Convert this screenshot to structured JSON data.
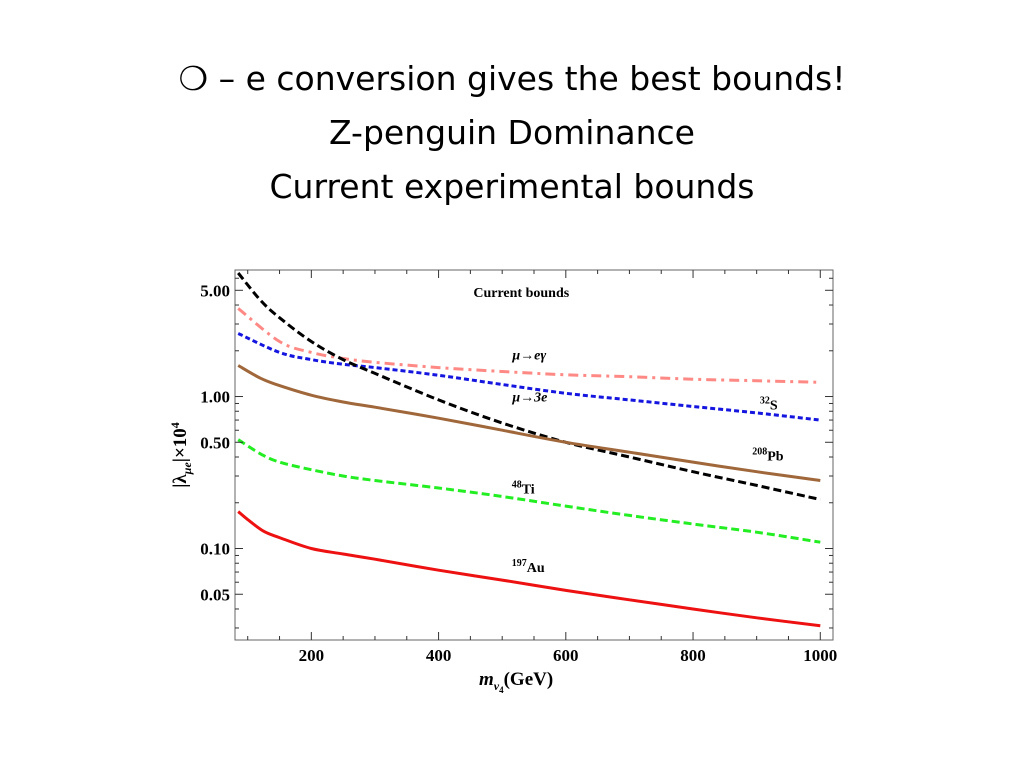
{
  "slide": {
    "bullet": "❍",
    "title_line1": "– e conversion gives the best bounds!",
    "title_line2": "Z-penguin Dominance",
    "title_line3": "Current experimental bounds"
  },
  "chart_data": {
    "type": "line",
    "title": "Current bounds",
    "xlabel_main": "m",
    "xlabel_sub": "ν",
    "xlabel_subsub": "4",
    "xlabel_unit": "(GeV)",
    "ylabel": "|λ",
    "ylabel_sub": "μe",
    "ylabel_mid": "|×10",
    "ylabel_exp": "4",
    "xlim": [
      80,
      1020
    ],
    "ylim": [
      0.025,
      6.8
    ],
    "yscale": "log",
    "x_ticks": [
      200,
      400,
      600,
      800,
      1000
    ],
    "x_tick_labels": [
      "200",
      "400",
      "600",
      "800",
      "1000"
    ],
    "y_ticks": [
      5.0,
      1.0,
      0.5,
      0.1,
      0.05
    ],
    "y_tick_labels": [
      "5.00",
      "1.00",
      "0.50",
      "0.10",
      "0.05"
    ],
    "grid": false,
    "legend": "none",
    "series": [
      {
        "color": "#ff8a85",
        "dash": "10,5,3,5",
        "x": [
          85,
          150,
          200,
          250,
          300,
          400,
          500,
          600,
          700,
          800,
          900,
          1000
        ],
        "y": [
          3.8,
          2.3,
          1.95,
          1.78,
          1.68,
          1.55,
          1.46,
          1.39,
          1.35,
          1.3,
          1.27,
          1.24
        ],
        "label_pre": "μ→e",
        "label_sup": "",
        "label_main": "γ",
        "label_x": 516,
        "label_y": 1.75
      },
      {
        "color": "#1515e0",
        "dash": "5,3",
        "x": [
          85,
          150,
          200,
          250,
          300,
          400,
          500,
          600,
          700,
          800,
          900,
          1000
        ],
        "y": [
          2.6,
          1.95,
          1.75,
          1.63,
          1.55,
          1.38,
          1.2,
          1.05,
          0.95,
          0.86,
          0.78,
          0.7
        ],
        "label_pre": "",
        "label_sup": "32",
        "label_main": "S",
        "label_x": 905,
        "label_y": 0.82
      },
      {
        "color": "#000000",
        "dash": "8,4",
        "x": [
          85,
          120,
          150,
          200,
          250,
          300,
          400,
          500,
          600,
          700,
          800,
          900,
          1000
        ],
        "y": [
          6.5,
          4.3,
          3.3,
          2.3,
          1.75,
          1.42,
          0.95,
          0.67,
          0.5,
          0.4,
          0.32,
          0.26,
          0.21
        ],
        "label_pre": "μ→3e",
        "label_sup": "",
        "label_main": "",
        "label_x": 516,
        "label_y": 0.93
      },
      {
        "color": "#a0673a",
        "dash": "",
        "x": [
          85,
          120,
          150,
          200,
          250,
          300,
          400,
          500,
          600,
          700,
          800,
          900,
          1000
        ],
        "y": [
          1.6,
          1.32,
          1.18,
          1.02,
          0.92,
          0.85,
          0.72,
          0.6,
          0.5,
          0.43,
          0.37,
          0.32,
          0.28
        ],
        "label_pre": "",
        "label_sup": "208",
        "label_main": "Pb",
        "label_x": 893,
        "label_y": 0.38
      },
      {
        "color": "#22ee22",
        "dash": "8,4",
        "x": [
          85,
          120,
          150,
          200,
          250,
          300,
          400,
          500,
          600,
          700,
          800,
          900,
          1000
        ],
        "y": [
          0.52,
          0.42,
          0.37,
          0.33,
          0.3,
          0.28,
          0.25,
          0.22,
          0.19,
          0.165,
          0.145,
          0.128,
          0.11
        ],
        "label_pre": "",
        "label_sup": "48",
        "label_main": "Ti",
        "label_x": 515,
        "label_y": 0.23
      },
      {
        "color": "#ee1111",
        "dash": "",
        "x": [
          85,
          100,
          125,
          150,
          200,
          250,
          300,
          400,
          500,
          600,
          700,
          800,
          900,
          1000
        ],
        "y": [
          0.175,
          0.155,
          0.13,
          0.118,
          0.1,
          0.092,
          0.085,
          0.072,
          0.062,
          0.053,
          0.046,
          0.04,
          0.035,
          0.031
        ],
        "label_pre": "",
        "label_sup": "197",
        "label_main": "Au",
        "label_x": 515,
        "label_y": 0.07
      }
    ]
  }
}
